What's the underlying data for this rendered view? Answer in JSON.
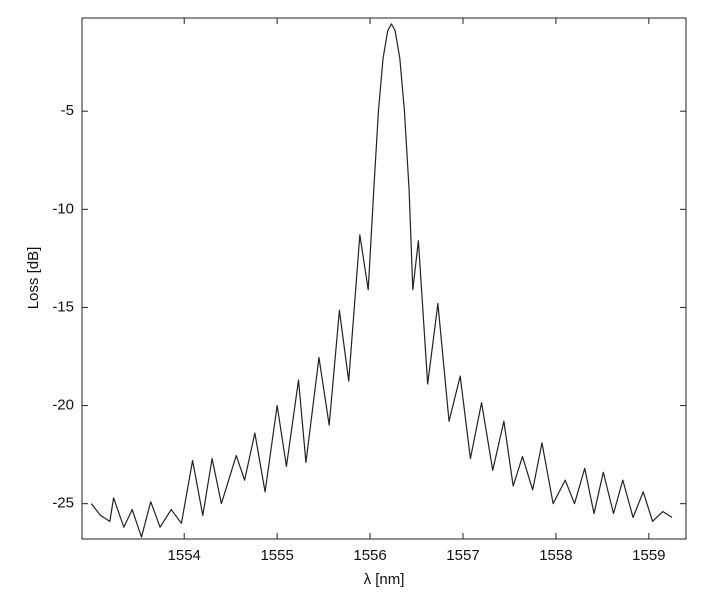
{
  "chart_data": {
    "type": "line",
    "xlabel": "λ [nm]",
    "ylabel": "Loss [dB]",
    "x": [
      1553.0,
      1553.1,
      1553.2,
      1553.24,
      1553.35,
      1553.44,
      1553.54,
      1553.64,
      1553.74,
      1553.86,
      1553.97,
      1554.09,
      1554.2,
      1554.3,
      1554.4,
      1554.56,
      1554.65,
      1554.76,
      1554.87,
      1555.0,
      1555.1,
      1555.23,
      1555.31,
      1555.45,
      1555.56,
      1555.67,
      1555.77,
      1555.89,
      1555.98,
      1556.04,
      1556.09,
      1556.14,
      1556.19,
      1556.23,
      1556.27,
      1556.32,
      1556.37,
      1556.42,
      1556.46,
      1556.52,
      1556.62,
      1556.73,
      1556.85,
      1556.97,
      1557.08,
      1557.2,
      1557.32,
      1557.44,
      1557.54,
      1557.64,
      1557.75,
      1557.85,
      1557.97,
      1558.1,
      1558.2,
      1558.31,
      1558.41,
      1558.51,
      1558.62,
      1558.72,
      1558.83,
      1558.94,
      1559.04,
      1559.15,
      1559.25
    ],
    "values": [
      -25.0,
      -25.6,
      -25.9,
      -24.7,
      -26.2,
      -25.3,
      -26.7,
      -24.9,
      -26.2,
      -25.3,
      -26.0,
      -22.8,
      -25.6,
      -22.7,
      -25.0,
      -22.55,
      -23.8,
      -21.4,
      -24.4,
      -20.0,
      -23.1,
      -18.7,
      -22.9,
      -17.55,
      -21.0,
      -15.15,
      -18.75,
      -11.3,
      -14.1,
      -9.0,
      -5.0,
      -2.3,
      -0.9,
      -0.55,
      -0.9,
      -2.3,
      -5.0,
      -9.0,
      -14.1,
      -11.6,
      -18.9,
      -14.8,
      -20.8,
      -18.5,
      -22.7,
      -19.85,
      -23.3,
      -20.8,
      -24.1,
      -22.6,
      -24.3,
      -21.9,
      -25.0,
      -23.8,
      -25.0,
      -23.2,
      -25.5,
      -23.4,
      -25.5,
      -23.8,
      -25.7,
      -24.4,
      -25.9,
      -25.4,
      -25.7
    ],
    "color": "#222222",
    "xlim": [
      1552.9,
      1559.4
    ],
    "xticks": [
      1554,
      1555,
      1556,
      1557,
      1558,
      1559
    ],
    "ylim": [
      -26.8,
      -0.25
    ],
    "yticks": [
      -25,
      -20,
      -15,
      -10,
      -5
    ],
    "grid": false
  }
}
